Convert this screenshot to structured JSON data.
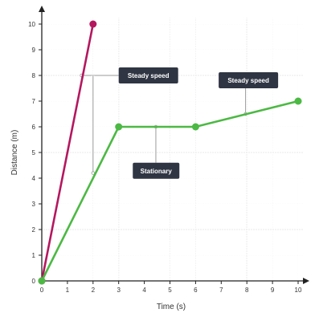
{
  "chart_data": {
    "type": "line",
    "xlabel": "Time (s)",
    "ylabel": "Distance (m)",
    "xlim": [
      0,
      10
    ],
    "ylim": [
      0,
      10
    ],
    "x_ticks": [
      0,
      1,
      2,
      3,
      4,
      5,
      6,
      7,
      8,
      9,
      10
    ],
    "y_ticks": [
      0,
      1,
      2,
      3,
      4,
      5,
      6,
      7,
      8,
      9,
      10
    ],
    "grid": true,
    "series": [
      {
        "color": "#b5175f",
        "points": [
          [
            0,
            0
          ],
          [
            2,
            10
          ]
        ]
      },
      {
        "color": "#4cb944",
        "points": [
          [
            0,
            0
          ],
          [
            3,
            6
          ],
          [
            6,
            6
          ],
          [
            10,
            7
          ]
        ]
      }
    ],
    "annotations": [
      {
        "text": "Steady speed"
      },
      {
        "text": "Stationary"
      },
      {
        "text": "Steady speed"
      }
    ]
  }
}
